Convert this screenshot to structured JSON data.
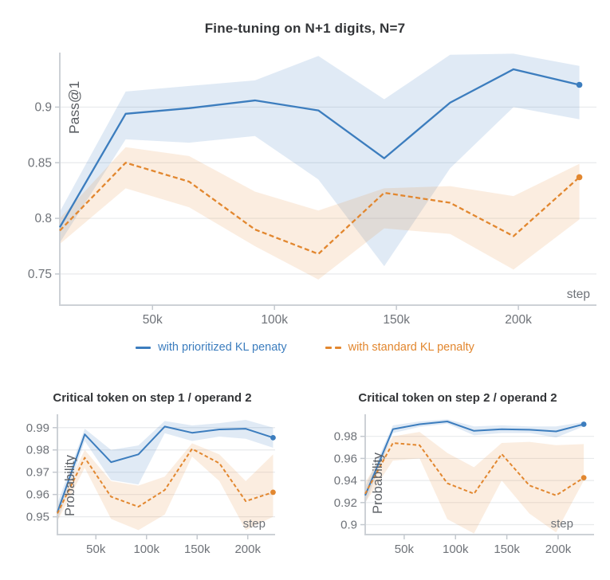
{
  "figure": {
    "title": "Fine-tuning on N+1 digits, N=7",
    "legend": [
      {
        "label": "with prioritized KL penaty",
        "color": "#3c7dbe",
        "style": "solid"
      },
      {
        "label": "with standard KL penalty",
        "color": "#e2872f",
        "style": "dashed"
      }
    ],
    "accent_blue": "#3c7dbe",
    "accent_orange": "#e2872f"
  },
  "chart_data": [
    {
      "type": "line",
      "title": "Fine-tuning on N+1 digits, N=7",
      "xlabel": "step",
      "ylabel": "Pass@1",
      "x": [
        12,
        39,
        65,
        92,
        118,
        145,
        172,
        198,
        225
      ],
      "x_unit": "k steps",
      "xlim": [
        12,
        232
      ],
      "ylim": [
        0.722,
        0.949
      ],
      "grid": true,
      "legend_position": "below",
      "x_ticks": [
        {
          "v": 50,
          "label": "50k"
        },
        {
          "v": 100,
          "label": "100k"
        },
        {
          "v": 150,
          "label": "150k"
        },
        {
          "v": 200,
          "label": "200k"
        }
      ],
      "y_ticks": [
        {
          "v": 0.9,
          "label": "0.9"
        },
        {
          "v": 0.85,
          "label": "0.85"
        },
        {
          "v": 0.8,
          "label": "0.8"
        },
        {
          "v": 0.75,
          "label": "0.75"
        }
      ],
      "series": [
        {
          "name": "with prioritized KL penaty",
          "color": "#3c7dbe",
          "band_color": "rgba(60,125,190,0.16)",
          "dashed": false,
          "end_dot": true,
          "values": [
            0.792,
            0.894,
            0.899,
            0.906,
            0.897,
            0.854,
            0.904,
            0.934,
            0.92
          ],
          "band_hi": [
            0.806,
            0.914,
            0.919,
            0.924,
            0.946,
            0.907,
            0.947,
            0.948,
            0.937
          ],
          "band_lo": [
            0.778,
            0.871,
            0.868,
            0.874,
            0.835,
            0.757,
            0.845,
            0.9,
            0.889
          ]
        },
        {
          "name": "with standard KL penalty",
          "color": "#e2872f",
          "band_color": "rgba(226,135,47,0.15)",
          "dashed": true,
          "end_dot": true,
          "values": [
            0.789,
            0.85,
            0.833,
            0.79,
            0.768,
            0.823,
            0.814,
            0.784,
            0.837
          ],
          "band_hi": [
            0.8,
            0.864,
            0.856,
            0.824,
            0.807,
            0.827,
            0.829,
            0.82,
            0.849
          ],
          "band_lo": [
            0.777,
            0.827,
            0.81,
            0.775,
            0.745,
            0.791,
            0.786,
            0.754,
            0.799
          ]
        }
      ]
    },
    {
      "type": "line",
      "title": "Critical token on step 1 / operand 2",
      "xlabel": "step",
      "ylabel": "Probability",
      "x": [
        12,
        39,
        65,
        92,
        118,
        145,
        172,
        198,
        225
      ],
      "x_unit": "k steps",
      "xlim": [
        12,
        227
      ],
      "ylim": [
        0.942,
        0.996
      ],
      "grid": true,
      "x_ticks": [
        {
          "v": 50,
          "label": "50k"
        },
        {
          "v": 100,
          "label": "100k"
        },
        {
          "v": 150,
          "label": "150k"
        },
        {
          "v": 200,
          "label": "200k"
        }
      ],
      "y_ticks": [
        {
          "v": 0.99,
          "label": "0.99"
        },
        {
          "v": 0.98,
          "label": "0.98"
        },
        {
          "v": 0.97,
          "label": "0.97"
        },
        {
          "v": 0.96,
          "label": "0.96"
        },
        {
          "v": 0.95,
          "label": "0.95"
        }
      ],
      "series": [
        {
          "name": "with prioritized KL penaty",
          "color": "#3c7dbe",
          "band_color": "rgba(60,125,190,0.16)",
          "dashed": false,
          "end_dot": true,
          "values": [
            0.952,
            0.987,
            0.9745,
            0.978,
            0.9905,
            0.9877,
            0.9892,
            0.9895,
            0.9855
          ],
          "band_hi": [
            0.956,
            0.9895,
            0.98,
            0.982,
            0.993,
            0.991,
            0.992,
            0.9935,
            0.99
          ],
          "band_lo": [
            0.948,
            0.984,
            0.9665,
            0.9645,
            0.9875,
            0.984,
            0.986,
            0.985,
            0.981
          ]
        },
        {
          "name": "with standard KL penalty",
          "color": "#e2872f",
          "band_color": "rgba(226,135,47,0.15)",
          "dashed": true,
          "end_dot": true,
          "values": [
            0.9515,
            0.9765,
            0.959,
            0.9545,
            0.962,
            0.9805,
            0.974,
            0.957,
            0.961
          ],
          "band_hi": [
            0.9545,
            0.98,
            0.966,
            0.964,
            0.968,
            0.983,
            0.978,
            0.966,
            0.978
          ],
          "band_lo": [
            0.948,
            0.972,
            0.949,
            0.944,
            0.951,
            0.977,
            0.966,
            0.944,
            0.95
          ]
        }
      ]
    },
    {
      "type": "line",
      "title": "Critical token on step 2 / operand 2",
      "xlabel": "step",
      "ylabel": "Probability",
      "x": [
        12,
        39,
        65,
        92,
        118,
        145,
        172,
        198,
        225
      ],
      "x_unit": "k steps",
      "xlim": [
        12,
        235
      ],
      "ylim": [
        0.891,
        1.0
      ],
      "grid": true,
      "x_ticks": [
        {
          "v": 50,
          "label": "50k"
        },
        {
          "v": 100,
          "label": "100k"
        },
        {
          "v": 150,
          "label": "150k"
        },
        {
          "v": 200,
          "label": "200k"
        }
      ],
      "y_ticks": [
        {
          "v": 0.98,
          "label": "0.98"
        },
        {
          "v": 0.96,
          "label": "0.96"
        },
        {
          "v": 0.94,
          "label": "0.94"
        },
        {
          "v": 0.92,
          "label": "0.92"
        },
        {
          "v": 0.9,
          "label": "0.9"
        }
      ],
      "series": [
        {
          "name": "with prioritized KL penaty",
          "color": "#3c7dbe",
          "band_color": "rgba(60,125,190,0.16)",
          "dashed": false,
          "end_dot": true,
          "values": [
            0.9265,
            0.9865,
            0.991,
            0.9935,
            0.985,
            0.9865,
            0.986,
            0.9845,
            0.991
          ],
          "band_hi": [
            0.934,
            0.99,
            0.9935,
            0.9955,
            0.989,
            0.99,
            0.989,
            0.989,
            0.993
          ],
          "band_lo": [
            0.919,
            0.983,
            0.9885,
            0.9915,
            0.981,
            0.983,
            0.983,
            0.979,
            0.989
          ]
        },
        {
          "name": "with standard KL penalty",
          "color": "#e2872f",
          "band_color": "rgba(226,135,47,0.15)",
          "dashed": true,
          "end_dot": true,
          "values": [
            0.928,
            0.974,
            0.972,
            0.9375,
            0.928,
            0.964,
            0.9355,
            0.9265,
            0.9425
          ],
          "band_hi": [
            0.938,
            0.98,
            0.984,
            0.965,
            0.952,
            0.974,
            0.975,
            0.972,
            0.973
          ],
          "band_lo": [
            0.92,
            0.958,
            0.96,
            0.905,
            0.892,
            0.94,
            0.91,
            0.893,
            0.94
          ]
        }
      ]
    }
  ]
}
